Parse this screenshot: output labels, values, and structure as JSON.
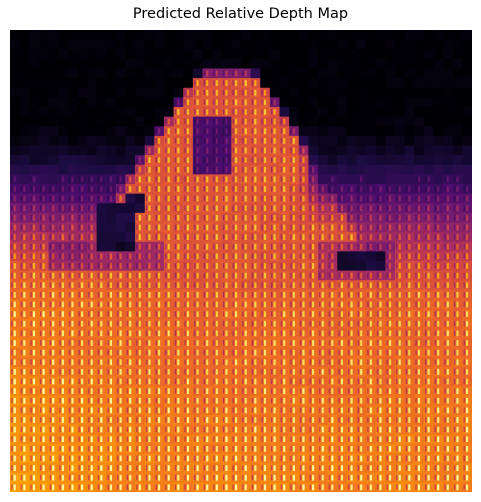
{
  "figure": {
    "title": "Predicted Relative Depth Map"
  },
  "image": {
    "kind": "relative depth map heatmap",
    "colormap": "inferno",
    "colormap_stops": [
      "#000004",
      "#1b0c41",
      "#4a0c6b",
      "#781c6d",
      "#a52c60",
      "#cf4446",
      "#ed6925",
      "#fb9b06",
      "#f7d13d",
      "#fcffa4"
    ],
    "grid_size": 48,
    "axes_visible": false
  }
}
